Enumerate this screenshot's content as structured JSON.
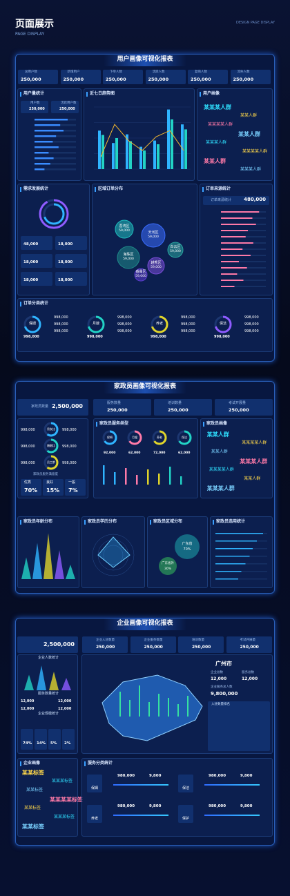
{
  "header": {
    "title": "页面展示",
    "subtitle": "PAGE DISPLAY",
    "tag": "DESIGN PAGE DISPLAY"
  },
  "report1": {
    "title": "用户画像可视化报表",
    "stats": [
      {
        "label": "总用户数",
        "value": "250,000"
      },
      {
        "label": "新增用户",
        "value": "250,000"
      },
      {
        "label": "下单人数",
        "value": "250,000"
      },
      {
        "label": "活跃人数",
        "value": "250,000"
      },
      {
        "label": "复购人数",
        "value": "250,000"
      },
      {
        "label": "流失人数",
        "value": "250,000"
      }
    ],
    "user_count": {
      "title": "用户量统计",
      "items": [
        {
          "label": "用户数",
          "value": "250,000"
        },
        {
          "label": "活跃用户数",
          "value": "250,000"
        }
      ],
      "values": [
        80,
        62,
        70,
        52,
        44,
        58,
        34,
        46,
        38,
        24
      ]
    },
    "trend": {
      "title": "近七日趋势图",
      "type": "bar",
      "ylim": [
        0,
        100
      ],
      "series": [
        {
          "color": "#2fb4ff",
          "values": [
            62,
            42,
            56,
            36,
            46,
            96,
            72
          ]
        },
        {
          "color": "#22d3c5",
          "values": [
            55,
            50,
            45,
            30,
            40,
            80,
            64
          ]
        },
        {
          "color": "#f5b92e",
          "values": [
            20,
            72,
            46,
            30,
            52,
            62,
            30
          ]
        }
      ]
    },
    "persona": {
      "title": "用户画像",
      "words": [
        "某某某人群",
        "某某人群",
        "某某某某人群",
        "某某人群",
        "某某某人群",
        "某某某某人群",
        "某某人群",
        "某某某人群"
      ]
    },
    "demand": {
      "title": "需求发展统计",
      "values": [
        "48,000",
        "18,000",
        "18,000",
        "18,000",
        "18,000",
        "18,000"
      ]
    },
    "region": {
      "title": "区域订单分布",
      "bubbles": [
        {
          "name": "天河区",
          "value": "59,000"
        },
        {
          "name": "荔湾区",
          "value": "59,000"
        },
        {
          "name": "海珠区",
          "value": "59,000"
        },
        {
          "name": "越秀区",
          "value": "59,000"
        },
        {
          "name": "白云区",
          "value": "59,000"
        },
        {
          "name": "番禺区",
          "value": "59,000"
        }
      ]
    },
    "source": {
      "title": "订单来源统计",
      "total": "480,000",
      "values": [
        85,
        70,
        78,
        60,
        55,
        72,
        48,
        66,
        40,
        58,
        36,
        50,
        30
      ]
    },
    "category": {
      "title": "订单分类统计",
      "groups": [
        {
          "name": "保姆",
          "total": "998,000",
          "items": [
            "998,000",
            "998,000",
            "998,000"
          ]
        },
        {
          "name": "月嫂",
          "total": "998,000",
          "items": [
            "998,000",
            "998,000",
            "998,000"
          ]
        },
        {
          "name": "养老",
          "total": "998,000",
          "items": [
            "998,000",
            "998,000",
            "998,000"
          ]
        },
        {
          "name": "保洁",
          "total": "998,000",
          "items": [
            "998,000",
            "998,000",
            "998,000"
          ]
        }
      ]
    }
  },
  "report2": {
    "title": "家政员画像可视化报表",
    "count": {
      "label": "家政员数量",
      "value": "2,500,000"
    },
    "cards": [
      {
        "label": "服务数量",
        "value": "250,000"
      },
      {
        "label": "培训数量",
        "value": "250,000"
      },
      {
        "label": "考试开展量",
        "value": "250,000"
      }
    ],
    "rings": [
      {
        "label": "男女比",
        "a": "998,000",
        "b": "998,000"
      },
      {
        "label": "婚姻比",
        "a": "998,000",
        "b": "998,000"
      },
      {
        "label": "员工龄",
        "a": "998,000",
        "b": "998,000"
      }
    ],
    "satisfaction": {
      "title": "家政员服务满意度",
      "items": [
        {
          "label": "优秀",
          "value": "70%"
        },
        {
          "label": "良好",
          "value": "15%"
        },
        {
          "label": "一般",
          "value": "7%"
        }
      ]
    },
    "service": {
      "title": "家政员服务类型",
      "items": [
        {
          "name": "保姆",
          "value": "92,000"
        },
        {
          "name": "月嫂",
          "value": "62,000"
        },
        {
          "name": "养老",
          "value": "72,000"
        },
        {
          "name": "保洁",
          "value": "62,000"
        }
      ],
      "values": [
        70,
        45,
        60,
        35,
        55,
        40,
        65,
        30
      ]
    },
    "persona": {
      "title": "家政员画像",
      "words": [
        "某某人群",
        "某某某某人群",
        "某某人群",
        "某某某人群",
        "某某某某人群",
        "某某人群",
        "某某某人群"
      ]
    },
    "age": {
      "title": "家政员年龄分布",
      "values": [
        45,
        75,
        95,
        60,
        30
      ]
    },
    "edu": {
      "title": "家政员学历分布"
    },
    "region": {
      "title": "家政员区域分布",
      "items": [
        {
          "name": "广东省",
          "value": "70%"
        },
        {
          "name": "广东省外",
          "value": "30%"
        }
      ]
    },
    "select": {
      "title": "家政员选用统计",
      "values": [
        92,
        80,
        72,
        66,
        58,
        50,
        44
      ]
    }
  },
  "report3": {
    "title": "企业画像可视化报表",
    "count": "2,500,000",
    "cards": [
      {
        "label": "企业入驻数量",
        "value": "250,000"
      },
      {
        "label": "企业服务数量",
        "value": "250,000"
      },
      {
        "label": "培训数量",
        "value": "250,000"
      },
      {
        "label": "考试开展量",
        "value": "250,000"
      }
    ],
    "left": {
      "titles": [
        "企业人数统计",
        "服务数量统计",
        "企业规模统计"
      ],
      "values": [
        "12,000",
        "12,000",
        "12,000",
        "12,000"
      ],
      "spikes": [
        50,
        80,
        60,
        40
      ],
      "scale": [
        "74%",
        "14%",
        "5%",
        "2%"
      ]
    },
    "map": {
      "city": "广州市",
      "stats": [
        {
          "label": "企业总数",
          "value": "12,000"
        },
        {
          "label": "服务总数",
          "value": "12,000"
        }
      ],
      "total_label": "企业服务总人数",
      "total": "9,800,000",
      "rank_title": "入驻数量排名",
      "spikes": [
        60,
        40,
        75,
        35,
        55,
        45,
        30,
        50
      ]
    },
    "persona": {
      "title": "企业画像",
      "words": [
        "某某标签",
        "某某某标签",
        "某某标签",
        "某某某某标签",
        "某某标签",
        "某某某标签",
        "某某标签"
      ]
    },
    "services": {
      "title": "服务分类统计",
      "items": [
        {
          "name": "保姆",
          "a": "980,000",
          "b": "9,800"
        },
        {
          "name": "保洁",
          "a": "980,000",
          "b": "9,800"
        },
        {
          "name": "养老",
          "a": "980,000",
          "b": "9,800"
        },
        {
          "name": "保护",
          "a": "980,000",
          "b": "9,800"
        }
      ]
    }
  }
}
